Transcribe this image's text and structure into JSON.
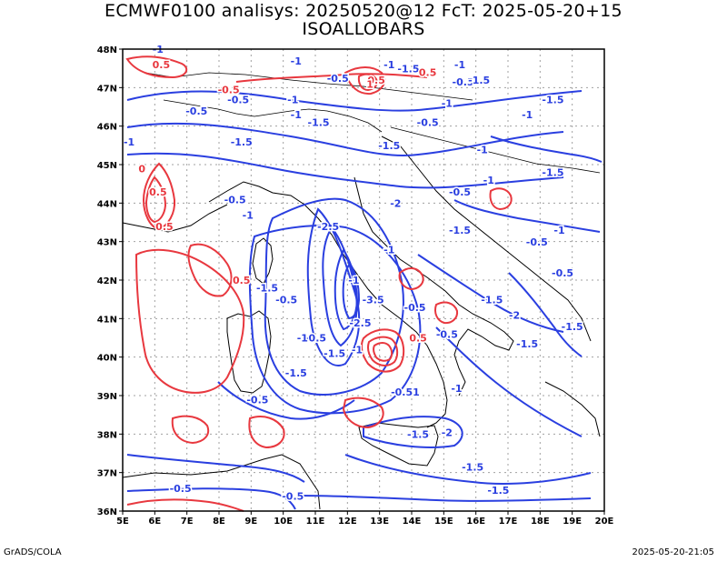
{
  "title": {
    "line1": "ECMWF0100 analisys: 20250520@12 FcT: 2025-05-20+15",
    "line2": "ISOALLOBARS"
  },
  "axes": {
    "lon_labels": [
      "5E",
      "6E",
      "7E",
      "8E",
      "9E",
      "10E",
      "11E",
      "12E",
      "13E",
      "14E",
      "15E",
      "16E",
      "17E",
      "18E",
      "19E",
      "20E"
    ],
    "lat_labels": [
      "48N",
      "47N",
      "46N",
      "45N",
      "44N",
      "43N",
      "42N",
      "41N",
      "40N",
      "39N",
      "38N",
      "37N",
      "36N"
    ],
    "lon_range": [
      5,
      20
    ],
    "lat_range": [
      36,
      48
    ]
  },
  "colors": {
    "negative_contour": "#2a3fe0",
    "positive_contour": "#e8383f",
    "coastline": "#000000",
    "grid": "#a0a0a0"
  },
  "contour_labels": {
    "blue": [
      {
        "text": "-1",
        "lon": 6.1,
        "lat": 47.9
      },
      {
        "text": "-1",
        "lon": 10.4,
        "lat": 47.6
      },
      {
        "text": "-0.5",
        "lon": 11.7,
        "lat": 47.15
      },
      {
        "text": "-1",
        "lon": 13.3,
        "lat": 47.5
      },
      {
        "text": "-1.5",
        "lon": 13.9,
        "lat": 47.4
      },
      {
        "text": "-1",
        "lon": 15.5,
        "lat": 47.5
      },
      {
        "text": "-0.5",
        "lon": 15.6,
        "lat": 47.05
      },
      {
        "text": "-1.5",
        "lon": 16.1,
        "lat": 47.1
      },
      {
        "text": "-1.5",
        "lon": 18.4,
        "lat": 46.6
      },
      {
        "text": "-1",
        "lon": 17.6,
        "lat": 46.2
      },
      {
        "text": "-0.5",
        "lon": 8.6,
        "lat": 46.6
      },
      {
        "text": "-0.5",
        "lon": 7.3,
        "lat": 46.3
      },
      {
        "text": "-1",
        "lon": 10.3,
        "lat": 46.6
      },
      {
        "text": "-1",
        "lon": 10.4,
        "lat": 46.2
      },
      {
        "text": "-1.5",
        "lon": 11.1,
        "lat": 46.0
      },
      {
        "text": "-0.5",
        "lon": 14.5,
        "lat": 46.0
      },
      {
        "text": "-1",
        "lon": 15.1,
        "lat": 46.5
      },
      {
        "text": "-1",
        "lon": 5.2,
        "lat": 45.5
      },
      {
        "text": "-1.5",
        "lon": 8.7,
        "lat": 45.5
      },
      {
        "text": "-1.5",
        "lon": 13.3,
        "lat": 45.4
      },
      {
        "text": "-1",
        "lon": 16.2,
        "lat": 45.3
      },
      {
        "text": "-1.5",
        "lon": 18.4,
        "lat": 44.7
      },
      {
        "text": "-1",
        "lon": 16.4,
        "lat": 44.5
      },
      {
        "text": "-0.5",
        "lon": 15.5,
        "lat": 44.2
      },
      {
        "text": "-0.5",
        "lon": 8.5,
        "lat": 44.0
      },
      {
        "text": "-2",
        "lon": 13.5,
        "lat": 43.9
      },
      {
        "text": "-1",
        "lon": 8.9,
        "lat": 43.6
      },
      {
        "text": "-1.5",
        "lon": 15.5,
        "lat": 43.2
      },
      {
        "text": "-2.5",
        "lon": 11.4,
        "lat": 43.3
      },
      {
        "text": "-1",
        "lon": 18.6,
        "lat": 43.2
      },
      {
        "text": "-0.5",
        "lon": 17.9,
        "lat": 42.9
      },
      {
        "text": "-1",
        "lon": 13.3,
        "lat": 42.7
      },
      {
        "text": "-0.5",
        "lon": 18.7,
        "lat": 42.1
      },
      {
        "text": "-1",
        "lon": 12.2,
        "lat": 41.9
      },
      {
        "text": "-1.5",
        "lon": 9.5,
        "lat": 41.7
      },
      {
        "text": "-0.5",
        "lon": 10.1,
        "lat": 41.4
      },
      {
        "text": "-3.5",
        "lon": 12.8,
        "lat": 41.4
      },
      {
        "text": "-1.5",
        "lon": 16.5,
        "lat": 41.4
      },
      {
        "text": "-0.5",
        "lon": 14.1,
        "lat": 41.2
      },
      {
        "text": "-2",
        "lon": 17.2,
        "lat": 41.0
      },
      {
        "text": "-0.5",
        "lon": 11.0,
        "lat": 40.4
      },
      {
        "text": "-2.5",
        "lon": 12.4,
        "lat": 40.8
      },
      {
        "text": "-1",
        "lon": 10.6,
        "lat": 40.4
      },
      {
        "text": "-0.5",
        "lon": 15.1,
        "lat": 40.5
      },
      {
        "text": "-1.5",
        "lon": 17.6,
        "lat": 40.25
      },
      {
        "text": "-1.5",
        "lon": 19.0,
        "lat": 40.7
      },
      {
        "text": "-1.5",
        "lon": 11.6,
        "lat": 40.0
      },
      {
        "text": "-1",
        "lon": 12.3,
        "lat": 40.1
      },
      {
        "text": "-1.5",
        "lon": 10.4,
        "lat": 39.5
      },
      {
        "text": "-1",
        "lon": 15.4,
        "lat": 39.1
      },
      {
        "text": "-0.51",
        "lon": 13.8,
        "lat": 39.0
      },
      {
        "text": "-0.5",
        "lon": 9.2,
        "lat": 38.8
      },
      {
        "text": "-1.5",
        "lon": 14.2,
        "lat": 37.9
      },
      {
        "text": "-2",
        "lon": 15.1,
        "lat": 37.95
      },
      {
        "text": "-1.5",
        "lon": 15.9,
        "lat": 37.05
      },
      {
        "text": "-1.5",
        "lon": 16.7,
        "lat": 36.45
      },
      {
        "text": "-0.5",
        "lon": 6.8,
        "lat": 36.5
      },
      {
        "text": "-0.5",
        "lon": 10.3,
        "lat": 36.3
      }
    ],
    "red": [
      {
        "text": "0.5",
        "lon": 6.2,
        "lat": 47.5
      },
      {
        "text": "0.5",
        "lon": 12.9,
        "lat": 47.1
      },
      {
        "text": "0.5",
        "lon": 14.5,
        "lat": 47.3
      },
      {
        "text": "1",
        "lon": 12.7,
        "lat": 47.0
      },
      {
        "text": "-0.5",
        "lon": 8.3,
        "lat": 46.85
      },
      {
        "text": "0",
        "lon": 5.6,
        "lat": 44.8
      },
      {
        "text": "0.5",
        "lon": 6.1,
        "lat": 44.2
      },
      {
        "text": "0.5",
        "lon": 6.3,
        "lat": 43.3
      },
      {
        "text": "0.5",
        "lon": 8.7,
        "lat": 41.9
      },
      {
        "text": "0.5",
        "lon": 14.2,
        "lat": 40.4
      }
    ]
  },
  "footer": {
    "left": "GrADS/COLA",
    "right": "2025-05-20-21:05"
  }
}
